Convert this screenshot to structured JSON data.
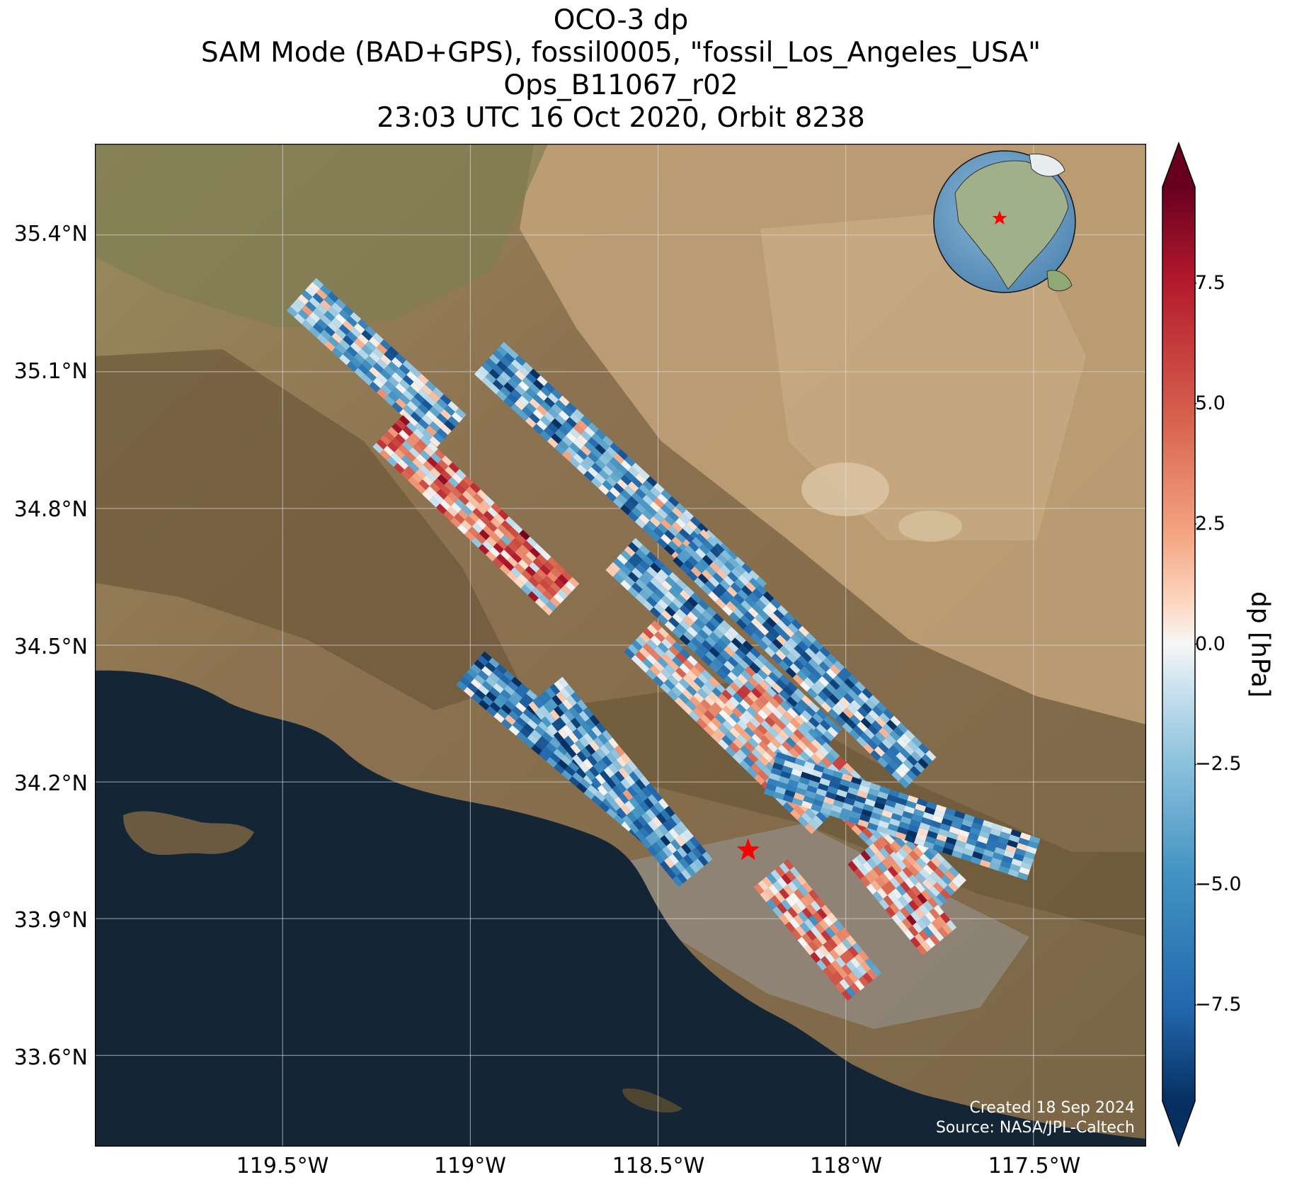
{
  "title_lines": [
    "OCO-3 dp",
    "SAM Mode (BAD+GPS), fossil0005, \"fossil_Los_Angeles_USA\"",
    "Ops_B11067_r02",
    "23:03 UTC 16 Oct 2020, Orbit 8238"
  ],
  "map": {
    "lon_range": [
      -120.0,
      -117.2
    ],
    "lat_range": [
      33.4,
      35.6
    ],
    "lat_ticks": [
      {
        "value": 35.4,
        "label": "35.4°N"
      },
      {
        "value": 35.1,
        "label": "35.1°N"
      },
      {
        "value": 34.8,
        "label": "34.8°N"
      },
      {
        "value": 34.5,
        "label": "34.5°N"
      },
      {
        "value": 34.2,
        "label": "34.2°N"
      },
      {
        "value": 33.9,
        "label": "33.9°N"
      },
      {
        "value": 33.6,
        "label": "33.6°N"
      }
    ],
    "lon_ticks": [
      {
        "value": -119.5,
        "label": "119.5°W"
      },
      {
        "value": -119.0,
        "label": "119°W"
      },
      {
        "value": -118.5,
        "label": "118.5°W"
      },
      {
        "value": -118.0,
        "label": "118°W"
      },
      {
        "value": -117.5,
        "label": "117.5°W"
      }
    ],
    "target": {
      "name": "fossil_Los_Angeles_USA",
      "lon": -118.26,
      "lat": 34.05
    },
    "basemap": "satellite-imagery",
    "gridlines": true,
    "inset": "globe-locator-north-america",
    "colors": {
      "ocean": "#152536",
      "land": "#8e7352",
      "desert": "#bf9d72",
      "mountain": "#6e5a3c",
      "urban": "#8f8a82",
      "star": "#ff0000"
    }
  },
  "credits": {
    "created": "Created 18 Sep 2024",
    "source": "Source: NASA/JPL-Caltech"
  },
  "colorbar": {
    "label": "dp [hPa]",
    "range": [
      -9.5,
      9.5
    ],
    "extend": "both",
    "cmap": "RdBu_r",
    "ticks": [
      {
        "value": 7.5,
        "label": "7.5"
      },
      {
        "value": 5.0,
        "label": "5.0"
      },
      {
        "value": 2.5,
        "label": "2.5"
      },
      {
        "value": 0.0,
        "label": "0.0"
      },
      {
        "value": -2.5,
        "label": "−2.5"
      },
      {
        "value": -5.0,
        "label": "−5.0"
      },
      {
        "value": -7.5,
        "label": "−7.5"
      }
    ]
  },
  "chart_data": {
    "type": "heatmap",
    "value_units": "hPa",
    "swaths": [
      {
        "center_start": [
          -119.45,
          35.27
        ],
        "center_end": [
          -119.05,
          34.97
        ],
        "bias": -3.0
      },
      {
        "center_start": [
          -119.22,
          34.97
        ],
        "center_end": [
          -118.75,
          34.6
        ],
        "bias": 2.5
      },
      {
        "center_start": [
          -118.95,
          35.13
        ],
        "center_end": [
          -118.25,
          34.6
        ],
        "bias": -3.5
      },
      {
        "center_start": [
          -118.6,
          34.7
        ],
        "center_end": [
          -118.05,
          34.28
        ],
        "bias": -4.5
      },
      {
        "center_start": [
          -118.42,
          34.72
        ],
        "center_end": [
          -117.8,
          34.22
        ],
        "bias": -4.0
      },
      {
        "center_start": [
          -118.55,
          34.52
        ],
        "center_end": [
          -118.05,
          34.12
        ],
        "bias": -1.0
      },
      {
        "center_start": [
          -118.3,
          34.42
        ],
        "center_end": [
          -117.72,
          33.95
        ],
        "bias": 0.5
      },
      {
        "center_start": [
          -118.2,
          34.22
        ],
        "center_end": [
          -117.5,
          34.03
        ],
        "bias": -4.5
      },
      {
        "center_start": [
          -119.0,
          34.45
        ],
        "center_end": [
          -118.5,
          34.1
        ],
        "bias": -5.0
      },
      {
        "center_start": [
          -118.8,
          34.4
        ],
        "center_end": [
          -118.4,
          34.0
        ],
        "bias": -4.0
      },
      {
        "center_start": [
          -118.2,
          34.0
        ],
        "center_end": [
          -117.95,
          33.75
        ],
        "bias": 1.5
      },
      {
        "center_start": [
          -117.95,
          34.05
        ],
        "center_end": [
          -117.75,
          33.85
        ],
        "bias": 2.0
      }
    ]
  }
}
